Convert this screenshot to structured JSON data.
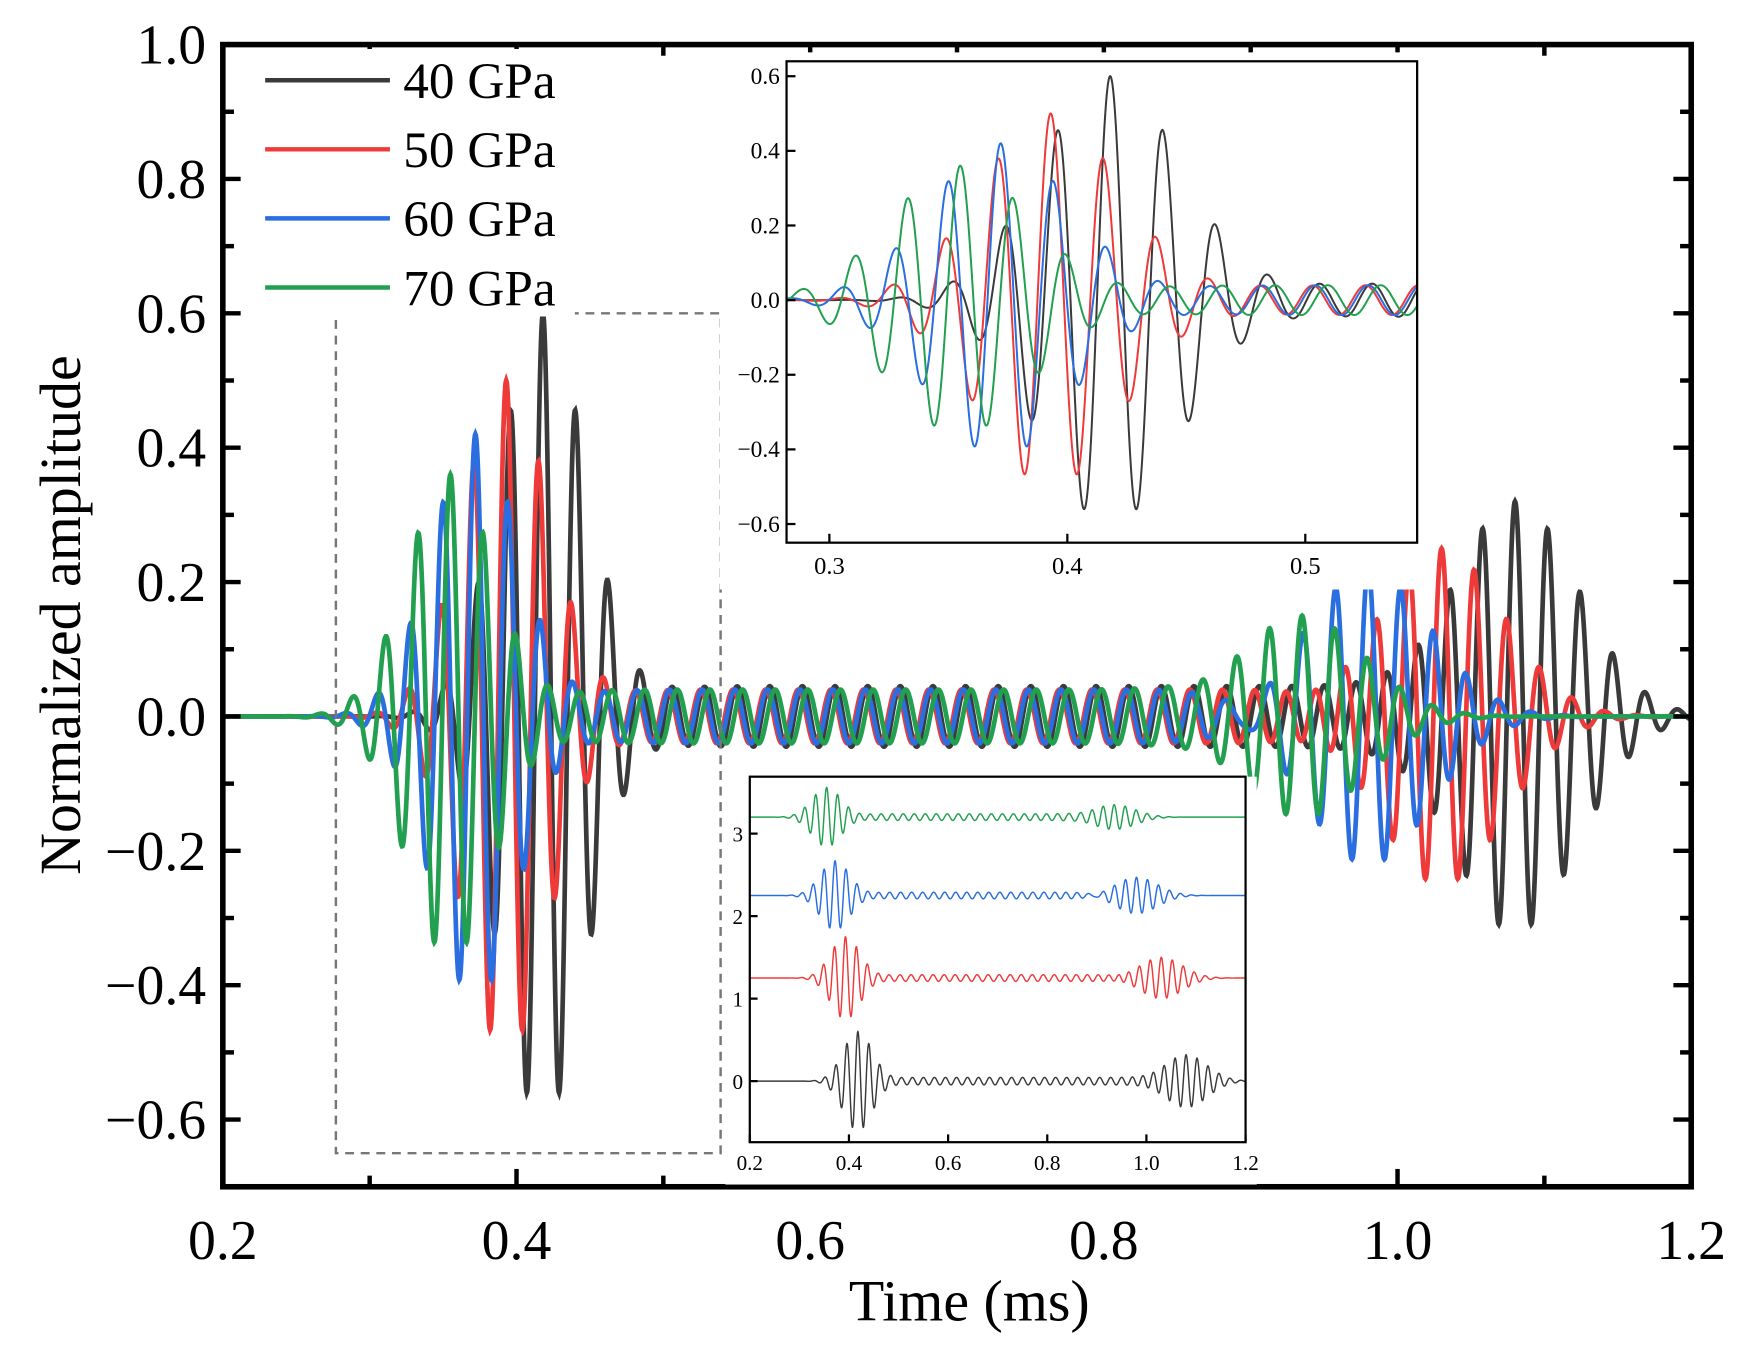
{
  "chart_data": {
    "type": "line",
    "xlabel": "Time (ms)",
    "ylabel": "Normalized amplitude",
    "xlim": [
      0.2,
      1.2
    ],
    "ylim": [
      -0.7,
      1.0
    ],
    "xticks": [
      "0.2",
      "0.4",
      "0.6",
      "0.8",
      "1.0",
      "1.2"
    ],
    "yticks": [
      "−0.6",
      "−0.4",
      "−0.2",
      "0.0",
      "0.2",
      "0.4",
      "0.6",
      "0.8",
      "1.0"
    ],
    "legend_position": "top-left",
    "series": [
      {
        "name": "40 GPa",
        "color": "#3a3a3a",
        "first_arrival_ms": 0.418,
        "first_peak": 0.6,
        "second_arrival_ms": 1.08,
        "second_peak": 0.32,
        "ringing": 0.045,
        "frequency_khz": 45
      },
      {
        "name": "50 GPa",
        "color": "#ef3a3a",
        "first_arrival_ms": 0.393,
        "first_peak": 0.5,
        "second_arrival_ms": 1.03,
        "second_peak": 0.25,
        "ringing": 0.04,
        "frequency_khz": 45
      },
      {
        "name": "60 GPa",
        "color": "#2a6ee0",
        "first_arrival_ms": 0.372,
        "first_peak": 0.42,
        "second_arrival_ms": 0.98,
        "second_peak": 0.22,
        "ringing": 0.04,
        "frequency_khz": 45
      },
      {
        "name": "70 GPa",
        "color": "#22a050",
        "first_arrival_ms": 0.355,
        "first_peak": 0.36,
        "second_arrival_ms": 0.935,
        "second_peak": 0.15,
        "ringing": 0.04,
        "frequency_khz": 45
      }
    ],
    "zoom_region": {
      "x": [
        0.277,
        0.539
      ],
      "y": [
        -0.65,
        0.6
      ]
    },
    "inset_zoom": {
      "xlim": [
        0.282,
        0.547
      ],
      "ylim": [
        -0.65,
        0.64
      ],
      "xticks": [
        "0.3",
        "0.4",
        "0.5"
      ],
      "yticks": [
        "−0.6",
        "−0.4",
        "−0.2",
        "0.0",
        "0.2",
        "0.4",
        "0.6"
      ]
    },
    "inset_stacked": {
      "xlim": [
        0.2,
        1.2
      ],
      "ylim": [
        -0.74,
        3.69
      ],
      "offsets": [
        0,
        1.25,
        2.25,
        3.2
      ],
      "xticks": [
        "0.2",
        "0.4",
        "0.6",
        "0.8",
        "1.0",
        "1.2"
      ],
      "yticks": [
        "0",
        "1",
        "2",
        "3"
      ]
    }
  }
}
